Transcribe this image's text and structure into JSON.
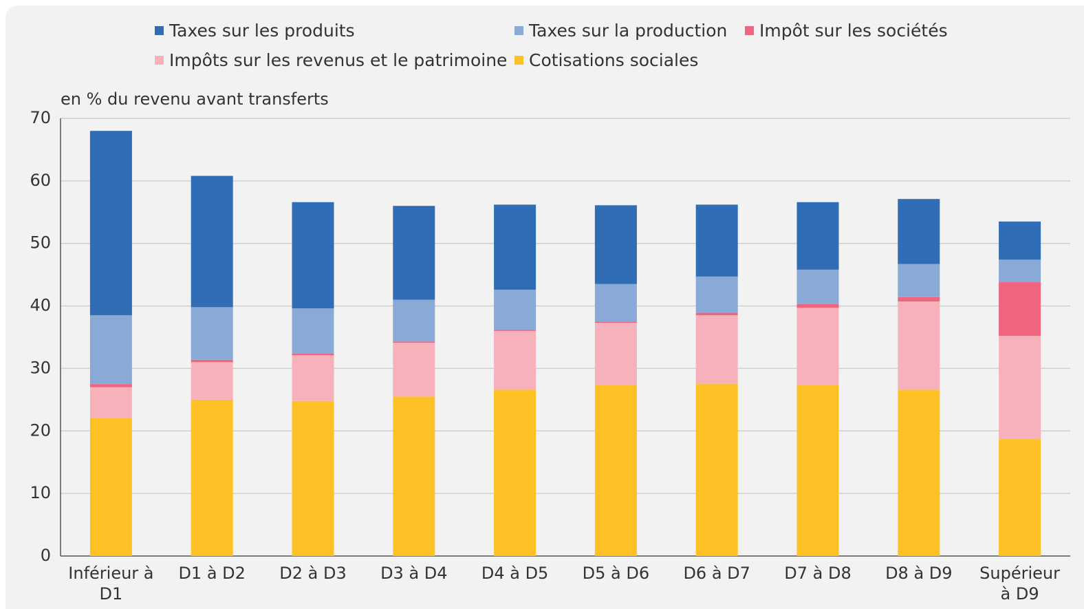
{
  "chart_data": {
    "type": "stacked_bar",
    "y_label": "en % du revenu avant transferts",
    "categories": [
      "Inférieur à D1",
      "D1 à D2",
      "D2 à D3",
      "D3 à D4",
      "D4 à D5",
      "D5 à D6",
      "D6 à D7",
      "D7 à D8",
      "D8 à D9",
      "Supérieur à D9"
    ],
    "series": [
      {
        "name": "Taxes sur les produits",
        "color": "#306db5",
        "values": [
          29.5,
          21.0,
          17.0,
          15.0,
          13.6,
          12.6,
          11.5,
          10.8,
          10.4,
          6.1
        ]
      },
      {
        "name": "Taxes sur la production",
        "color": "#89a9d6",
        "values": [
          11.0,
          8.4,
          7.2,
          6.7,
          6.4,
          6.0,
          5.8,
          5.5,
          5.3,
          3.6
        ]
      },
      {
        "name": "Impôt sur les sociétés",
        "color": "#ef6580",
        "values": [
          0.5,
          0.4,
          0.3,
          0.2,
          0.2,
          0.2,
          0.4,
          0.6,
          0.7,
          8.6
        ]
      },
      {
        "name": "Impôts sur les revenus et le patrimoine",
        "color": "#f7b1bb",
        "values": [
          4.9,
          6.0,
          7.3,
          8.6,
          9.4,
          10.0,
          11.0,
          12.4,
          14.1,
          16.5
        ]
      },
      {
        "name": "Cotisations sociales",
        "color": "#fdc125",
        "values": [
          22.1,
          25.0,
          24.8,
          25.5,
          26.6,
          27.3,
          27.5,
          27.3,
          26.6,
          18.7
        ]
      }
    ],
    "ylim": [
      0,
      70
    ],
    "yticks": [
      0,
      10,
      20,
      30,
      40,
      50,
      60,
      70
    ],
    "grid": true
  }
}
